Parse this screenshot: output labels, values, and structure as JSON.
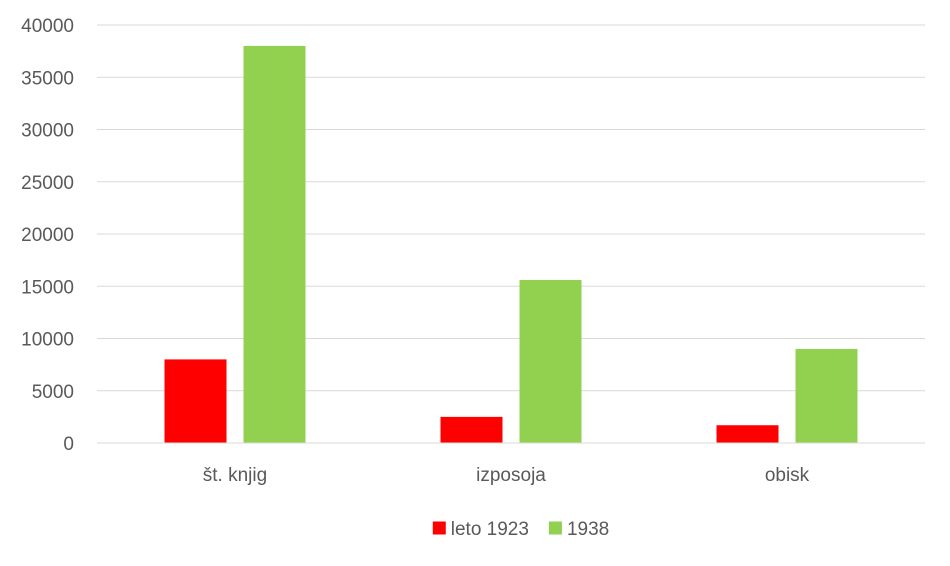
{
  "chart_data": {
    "type": "bar",
    "title": "",
    "xlabel": "",
    "ylabel": "",
    "categories": [
      "št. knjig",
      "izposoja",
      "obisk"
    ],
    "series": [
      {
        "name": "leto 1923",
        "color": "#ff0000",
        "values": [
          8000,
          2500,
          1700
        ]
      },
      {
        "name": "1938",
        "color": "#92d050",
        "values": [
          38000,
          15600,
          9000
        ]
      }
    ],
    "ylim": [
      0,
      40000
    ],
    "yticks": [
      "0",
      "5000",
      "10000",
      "15000",
      "20000",
      "25000",
      "30000",
      "35000",
      "40000"
    ],
    "grid": true,
    "gridline_color": "#d9d9d9",
    "legend": "bottom-center"
  }
}
